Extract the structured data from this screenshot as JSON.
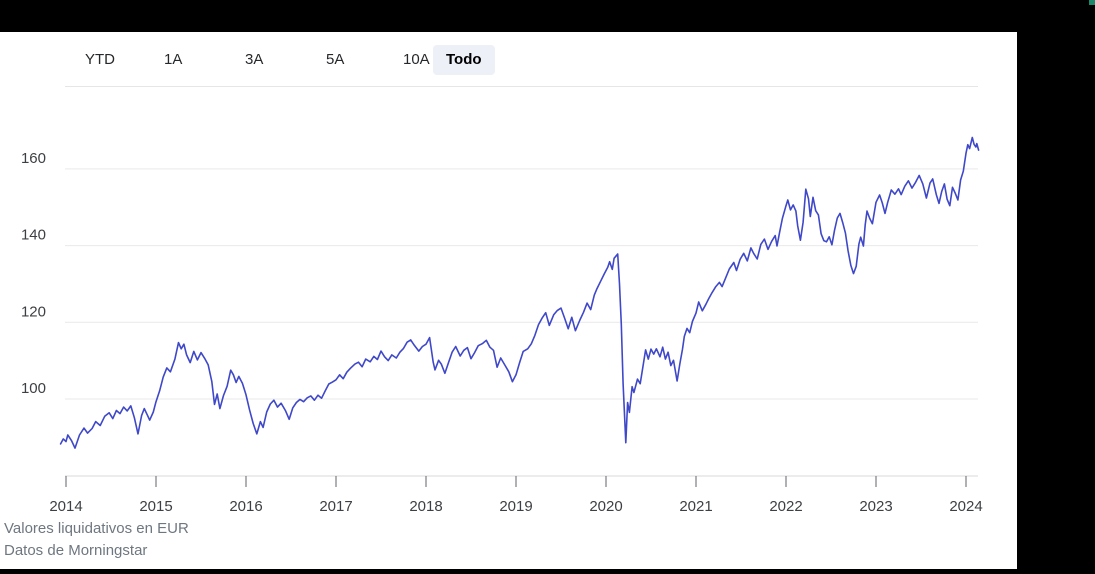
{
  "page": {
    "frame_color": "#000000",
    "surface_color": "#ffffff",
    "corner_dot_color": "#1d8a6e"
  },
  "time_range_selector": {
    "selected_bg": "#eef0f8",
    "options": [
      {
        "label": "YTD",
        "selected": false
      },
      {
        "label": "1A",
        "selected": false
      },
      {
        "label": "3A",
        "selected": false
      },
      {
        "label": "5A",
        "selected": false
      },
      {
        "label": "10A",
        "selected": false
      },
      {
        "label": "Todo",
        "selected": true
      }
    ]
  },
  "colors": {
    "line": "#3f48c9",
    "grid": "#e9e9e9",
    "axis": "#d9d9d9",
    "tick": "#5f6368",
    "axis_label": "#3c3f43",
    "footnote": "#6e7780"
  },
  "footnotes": [
    "Valores liquidativos en EUR",
    "Datos de Morningstar"
  ],
  "chart_data": {
    "type": "line",
    "title": "",
    "xlabel": "",
    "ylabel": "",
    "grid": true,
    "legend_position": "none",
    "x_axis": {
      "ticks": [
        2014,
        2015,
        2016,
        2017,
        2018,
        2019,
        2020,
        2021,
        2022,
        2023,
        2024
      ],
      "range": [
        2013.94,
        2024.17
      ]
    },
    "y_axis": {
      "ticks": [
        100,
        120,
        140,
        160
      ],
      "displayed_range": [
        85,
        171
      ]
    },
    "series": [
      {
        "name": "Valor liquidativo (EUR)",
        "color": "#3f48c9",
        "points": [
          [
            2013.94,
            88.3
          ],
          [
            2013.97,
            89.6
          ],
          [
            2014.0,
            88.9
          ],
          [
            2014.02,
            90.6
          ],
          [
            2014.06,
            89.2
          ],
          [
            2014.1,
            87.2
          ],
          [
            2014.15,
            90.6
          ],
          [
            2014.2,
            92.4
          ],
          [
            2014.24,
            91.1
          ],
          [
            2014.29,
            92.3
          ],
          [
            2014.33,
            94.1
          ],
          [
            2014.38,
            93.1
          ],
          [
            2014.43,
            95.5
          ],
          [
            2014.48,
            96.4
          ],
          [
            2014.52,
            94.9
          ],
          [
            2014.56,
            97.0
          ],
          [
            2014.6,
            96.2
          ],
          [
            2014.64,
            97.9
          ],
          [
            2014.68,
            96.9
          ],
          [
            2014.72,
            98.2
          ],
          [
            2014.76,
            95.1
          ],
          [
            2014.8,
            90.9
          ],
          [
            2014.84,
            95.7
          ],
          [
            2014.87,
            97.5
          ],
          [
            2014.9,
            96.0
          ],
          [
            2014.93,
            94.5
          ],
          [
            2014.97,
            96.6
          ],
          [
            2015.0,
            99.3
          ],
          [
            2015.04,
            102.1
          ],
          [
            2015.08,
            105.7
          ],
          [
            2015.12,
            108.1
          ],
          [
            2015.16,
            107.1
          ],
          [
            2015.21,
            110.4
          ],
          [
            2015.25,
            114.7
          ],
          [
            2015.28,
            113.1
          ],
          [
            2015.31,
            114.3
          ],
          [
            2015.34,
            111.5
          ],
          [
            2015.38,
            109.5
          ],
          [
            2015.42,
            112.4
          ],
          [
            2015.46,
            110.2
          ],
          [
            2015.5,
            112.1
          ],
          [
            2015.54,
            110.6
          ],
          [
            2015.58,
            108.9
          ],
          [
            2015.62,
            104.6
          ],
          [
            2015.65,
            98.6
          ],
          [
            2015.68,
            101.3
          ],
          [
            2015.71,
            97.5
          ],
          [
            2015.75,
            100.9
          ],
          [
            2015.79,
            103.3
          ],
          [
            2015.83,
            107.5
          ],
          [
            2015.86,
            106.3
          ],
          [
            2015.89,
            104.3
          ],
          [
            2015.92,
            105.9
          ],
          [
            2015.96,
            104.1
          ],
          [
            2016.0,
            101.1
          ],
          [
            2016.04,
            97.1
          ],
          [
            2016.08,
            93.6
          ],
          [
            2016.12,
            90.9
          ],
          [
            2016.16,
            94.1
          ],
          [
            2016.19,
            92.6
          ],
          [
            2016.23,
            96.6
          ],
          [
            2016.27,
            98.7
          ],
          [
            2016.31,
            99.7
          ],
          [
            2016.35,
            97.9
          ],
          [
            2016.39,
            98.9
          ],
          [
            2016.44,
            96.9
          ],
          [
            2016.48,
            94.7
          ],
          [
            2016.52,
            97.7
          ],
          [
            2016.56,
            99.1
          ],
          [
            2016.6,
            99.9
          ],
          [
            2016.64,
            99.3
          ],
          [
            2016.68,
            100.3
          ],
          [
            2016.72,
            100.8
          ],
          [
            2016.76,
            99.7
          ],
          [
            2016.8,
            101.0
          ],
          [
            2016.84,
            100.2
          ],
          [
            2016.88,
            102.1
          ],
          [
            2016.92,
            103.9
          ],
          [
            2016.96,
            104.4
          ],
          [
            2017.0,
            105.0
          ],
          [
            2017.04,
            106.3
          ],
          [
            2017.08,
            105.3
          ],
          [
            2017.12,
            107.0
          ],
          [
            2017.16,
            108.0
          ],
          [
            2017.21,
            109.1
          ],
          [
            2017.25,
            109.6
          ],
          [
            2017.29,
            108.4
          ],
          [
            2017.33,
            110.4
          ],
          [
            2017.38,
            109.7
          ],
          [
            2017.42,
            111.1
          ],
          [
            2017.46,
            110.3
          ],
          [
            2017.5,
            112.5
          ],
          [
            2017.54,
            111.0
          ],
          [
            2017.58,
            110.0
          ],
          [
            2017.62,
            111.5
          ],
          [
            2017.67,
            110.7
          ],
          [
            2017.71,
            112.2
          ],
          [
            2017.75,
            113.2
          ],
          [
            2017.79,
            114.8
          ],
          [
            2017.83,
            115.4
          ],
          [
            2017.87,
            114.0
          ],
          [
            2017.92,
            112.5
          ],
          [
            2017.96,
            113.7
          ],
          [
            2018.0,
            114.3
          ],
          [
            2018.04,
            116.0
          ],
          [
            2018.08,
            109.6
          ],
          [
            2018.1,
            107.6
          ],
          [
            2018.14,
            110.1
          ],
          [
            2018.17,
            109.1
          ],
          [
            2018.21,
            106.7
          ],
          [
            2018.25,
            109.5
          ],
          [
            2018.29,
            112.2
          ],
          [
            2018.33,
            113.7
          ],
          [
            2018.38,
            111.2
          ],
          [
            2018.42,
            112.7
          ],
          [
            2018.46,
            113.4
          ],
          [
            2018.5,
            110.5
          ],
          [
            2018.54,
            112.1
          ],
          [
            2018.58,
            113.9
          ],
          [
            2018.63,
            114.5
          ],
          [
            2018.67,
            115.3
          ],
          [
            2018.71,
            113.5
          ],
          [
            2018.75,
            112.7
          ],
          [
            2018.79,
            108.3
          ],
          [
            2018.83,
            110.7
          ],
          [
            2018.88,
            108.7
          ],
          [
            2018.92,
            107.1
          ],
          [
            2018.96,
            104.5
          ],
          [
            2019.0,
            106.3
          ],
          [
            2019.04,
            109.5
          ],
          [
            2019.08,
            112.4
          ],
          [
            2019.13,
            113.1
          ],
          [
            2019.17,
            114.4
          ],
          [
            2019.21,
            116.6
          ],
          [
            2019.25,
            119.4
          ],
          [
            2019.29,
            121.1
          ],
          [
            2019.33,
            122.5
          ],
          [
            2019.37,
            119.2
          ],
          [
            2019.42,
            122.0
          ],
          [
            2019.46,
            123.1
          ],
          [
            2019.5,
            123.7
          ],
          [
            2019.54,
            121.1
          ],
          [
            2019.58,
            118.3
          ],
          [
            2019.62,
            121.3
          ],
          [
            2019.66,
            117.8
          ],
          [
            2019.71,
            120.6
          ],
          [
            2019.75,
            122.6
          ],
          [
            2019.79,
            125.0
          ],
          [
            2019.83,
            123.3
          ],
          [
            2019.87,
            127.1
          ],
          [
            2019.9,
            128.8
          ],
          [
            2019.94,
            130.7
          ],
          [
            2019.98,
            132.6
          ],
          [
            2020.02,
            134.4
          ],
          [
            2020.04,
            135.8
          ],
          [
            2020.07,
            133.8
          ],
          [
            2020.09,
            136.7
          ],
          [
            2020.13,
            137.8
          ],
          [
            2020.15,
            130.0
          ],
          [
            2020.17,
            119.5
          ],
          [
            2020.19,
            104.0
          ],
          [
            2020.22,
            88.6
          ],
          [
            2020.24,
            99.1
          ],
          [
            2020.26,
            96.5
          ],
          [
            2020.29,
            103.2
          ],
          [
            2020.31,
            101.7
          ],
          [
            2020.35,
            105.2
          ],
          [
            2020.38,
            104.0
          ],
          [
            2020.4,
            106.9
          ],
          [
            2020.44,
            112.8
          ],
          [
            2020.47,
            110.4
          ],
          [
            2020.5,
            113.0
          ],
          [
            2020.53,
            111.7
          ],
          [
            2020.56,
            113.1
          ],
          [
            2020.6,
            111.0
          ],
          [
            2020.63,
            113.5
          ],
          [
            2020.66,
            110.4
          ],
          [
            2020.69,
            112.2
          ],
          [
            2020.72,
            108.7
          ],
          [
            2020.75,
            110.1
          ],
          [
            2020.79,
            104.7
          ],
          [
            2020.82,
            109.1
          ],
          [
            2020.85,
            113.0
          ],
          [
            2020.87,
            116.3
          ],
          [
            2020.9,
            118.4
          ],
          [
            2020.93,
            117.3
          ],
          [
            2020.96,
            120.2
          ],
          [
            2021.0,
            122.4
          ],
          [
            2021.03,
            125.3
          ],
          [
            2021.07,
            123.0
          ],
          [
            2021.11,
            124.7
          ],
          [
            2021.14,
            126.1
          ],
          [
            2021.18,
            127.8
          ],
          [
            2021.22,
            129.3
          ],
          [
            2021.26,
            130.4
          ],
          [
            2021.29,
            129.3
          ],
          [
            2021.33,
            131.6
          ],
          [
            2021.37,
            133.9
          ],
          [
            2021.42,
            135.6
          ],
          [
            2021.45,
            133.5
          ],
          [
            2021.49,
            136.4
          ],
          [
            2021.53,
            138.0
          ],
          [
            2021.57,
            136.0
          ],
          [
            2021.61,
            139.4
          ],
          [
            2021.64,
            138.0
          ],
          [
            2021.68,
            136.5
          ],
          [
            2021.72,
            140.3
          ],
          [
            2021.76,
            141.7
          ],
          [
            2021.8,
            139.0
          ],
          [
            2021.84,
            141.1
          ],
          [
            2021.88,
            142.6
          ],
          [
            2021.9,
            139.9
          ],
          [
            2021.93,
            143.6
          ],
          [
            2021.96,
            147.1
          ],
          [
            2022.0,
            150.4
          ],
          [
            2022.02,
            151.9
          ],
          [
            2022.05,
            149.3
          ],
          [
            2022.08,
            150.6
          ],
          [
            2022.11,
            149.0
          ],
          [
            2022.13,
            145.1
          ],
          [
            2022.16,
            141.4
          ],
          [
            2022.19,
            146.1
          ],
          [
            2022.22,
            154.7
          ],
          [
            2022.25,
            152.2
          ],
          [
            2022.27,
            147.6
          ],
          [
            2022.3,
            152.6
          ],
          [
            2022.33,
            149.1
          ],
          [
            2022.36,
            148.0
          ],
          [
            2022.39,
            143.1
          ],
          [
            2022.42,
            141.3
          ],
          [
            2022.45,
            141.0
          ],
          [
            2022.48,
            142.3
          ],
          [
            2022.51,
            140.2
          ],
          [
            2022.54,
            144.1
          ],
          [
            2022.57,
            147.2
          ],
          [
            2022.6,
            148.4
          ],
          [
            2022.63,
            146.0
          ],
          [
            2022.66,
            143.3
          ],
          [
            2022.69,
            138.6
          ],
          [
            2022.72,
            134.9
          ],
          [
            2022.75,
            132.7
          ],
          [
            2022.78,
            134.6
          ],
          [
            2022.81,
            140.4
          ],
          [
            2022.83,
            142.2
          ],
          [
            2022.86,
            139.9
          ],
          [
            2022.88,
            145.4
          ],
          [
            2022.9,
            149.0
          ],
          [
            2022.93,
            147.1
          ],
          [
            2022.96,
            145.7
          ],
          [
            2023.0,
            151.3
          ],
          [
            2023.04,
            153.2
          ],
          [
            2023.07,
            151.1
          ],
          [
            2023.1,
            148.4
          ],
          [
            2023.13,
            151.3
          ],
          [
            2023.17,
            154.5
          ],
          [
            2023.21,
            153.4
          ],
          [
            2023.25,
            154.8
          ],
          [
            2023.28,
            153.3
          ],
          [
            2023.32,
            155.5
          ],
          [
            2023.36,
            156.9
          ],
          [
            2023.4,
            155.0
          ],
          [
            2023.44,
            156.5
          ],
          [
            2023.48,
            158.3
          ],
          [
            2023.52,
            156.1
          ],
          [
            2023.56,
            152.4
          ],
          [
            2023.6,
            156.3
          ],
          [
            2023.63,
            157.4
          ],
          [
            2023.67,
            153.3
          ],
          [
            2023.7,
            151.0
          ],
          [
            2023.73,
            154.1
          ],
          [
            2023.76,
            156.1
          ],
          [
            2023.79,
            152.1
          ],
          [
            2023.82,
            150.4
          ],
          [
            2023.85,
            155.2
          ],
          [
            2023.88,
            153.7
          ],
          [
            2023.91,
            151.9
          ],
          [
            2023.94,
            157.1
          ],
          [
            2023.97,
            159.4
          ],
          [
            2024.0,
            164.1
          ],
          [
            2024.02,
            166.3
          ],
          [
            2024.04,
            165.3
          ],
          [
            2024.07,
            168.2
          ],
          [
            2024.09,
            166.4
          ],
          [
            2024.11,
            165.7
          ],
          [
            2024.12,
            166.6
          ],
          [
            2024.14,
            164.9
          ]
        ]
      }
    ]
  }
}
